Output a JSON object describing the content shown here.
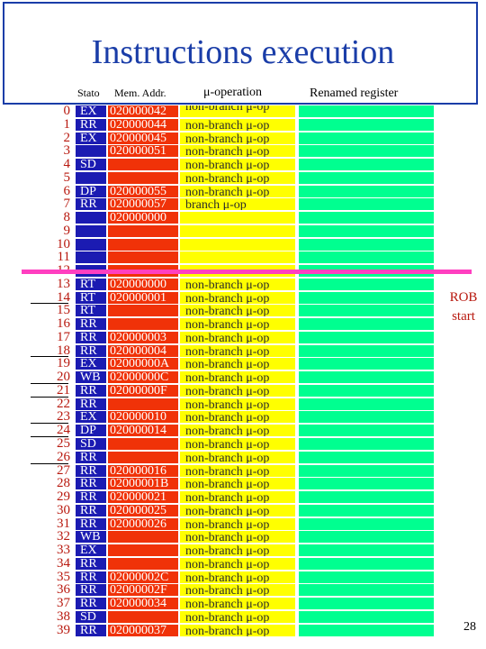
{
  "title": "Instructions execution",
  "headers": {
    "stato": "Stato",
    "mem": "Mem. Addr.",
    "op": "μ-operation",
    "reg": "Renamed register"
  },
  "rows": [
    {
      "idx": "0",
      "stato": "EX",
      "mem": "020000042",
      "op": "non-branch μ-op"
    },
    {
      "idx": "1",
      "stato": "RR",
      "mem": "020000044",
      "op": "non-branch μ-op"
    },
    {
      "idx": "2",
      "stato": "EX",
      "mem": "020000045",
      "op": "non-branch μ-op"
    },
    {
      "idx": "3",
      "stato": "",
      "mem": "020000051",
      "op": "non-branch μ-op"
    },
    {
      "idx": "4",
      "stato": "SD",
      "mem": "",
      "op": "non-branch μ-op"
    },
    {
      "idx": "5",
      "stato": "",
      "mem": "",
      "op": "non-branch μ-op"
    },
    {
      "idx": "6",
      "stato": "DP",
      "mem": "020000055",
      "op": "non-branch μ-op"
    },
    {
      "idx": "7",
      "stato": "RR",
      "mem": "020000057",
      "op": "branch μ-op"
    },
    {
      "idx": "8",
      "stato": "",
      "mem": "020000000",
      "op": ""
    },
    {
      "idx": "9",
      "stato": "",
      "mem": "",
      "op": ""
    },
    {
      "idx": "10",
      "stato": "",
      "mem": "",
      "op": ""
    },
    {
      "idx": "11",
      "stato": "",
      "mem": "",
      "op": ""
    },
    {
      "idx": "12",
      "stato": "",
      "mem": "",
      "op": ""
    },
    {
      "idx": "13",
      "stato": "RT",
      "mem": "020000000",
      "op": "non-branch μ-op"
    },
    {
      "idx": "14",
      "stato": "RT",
      "mem": "020000001",
      "op": "non-branch μ-op"
    },
    {
      "idx": "15",
      "stato": "RT",
      "mem": "",
      "op": "non-branch μ-op"
    },
    {
      "idx": "16",
      "stato": "RR",
      "mem": "",
      "op": "non-branch μ-op"
    },
    {
      "idx": "17",
      "stato": "RR",
      "mem": "020000003",
      "op": "non-branch μ-op"
    },
    {
      "idx": "18",
      "stato": "RR",
      "mem": "020000004",
      "op": "non-branch μ-op"
    },
    {
      "idx": "19",
      "stato": "EX",
      "mem": "02000000A",
      "op": "non-branch μ-op"
    },
    {
      "idx": "20",
      "stato": "WB",
      "mem": "02000000C",
      "op": "non-branch μ-op"
    },
    {
      "idx": "21",
      "stato": "RR",
      "mem": "02000000F",
      "op": "non-branch μ-op"
    },
    {
      "idx": "22",
      "stato": "RR",
      "mem": "",
      "op": "non-branch μ-op"
    },
    {
      "idx": "23",
      "stato": "EX",
      "mem": "020000010",
      "op": "non-branch μ-op"
    },
    {
      "idx": "24",
      "stato": "DP",
      "mem": "020000014",
      "op": "non-branch μ-op"
    },
    {
      "idx": "25",
      "stato": "SD",
      "mem": "",
      "op": "non-branch μ-op"
    },
    {
      "idx": "26",
      "stato": "RR",
      "mem": "",
      "op": "non-branch μ-op"
    },
    {
      "idx": "27",
      "stato": "RR",
      "mem": "020000016",
      "op": "non-branch μ-op"
    },
    {
      "idx": "28",
      "stato": "RR",
      "mem": "02000001B",
      "op": "non-branch μ-op"
    },
    {
      "idx": "29",
      "stato": "RR",
      "mem": "020000021",
      "op": "non-branch μ-op"
    },
    {
      "idx": "30",
      "stato": "RR",
      "mem": "020000025",
      "op": "non-branch μ-op"
    },
    {
      "idx": "31",
      "stato": "RR",
      "mem": "020000026",
      "op": "non-branch μ-op"
    },
    {
      "idx": "32",
      "stato": "WB",
      "mem": "",
      "op": "non-branch μ-op"
    },
    {
      "idx": "33",
      "stato": "EX",
      "mem": "",
      "op": "non-branch μ-op"
    },
    {
      "idx": "34",
      "stato": "RR",
      "mem": "",
      "op": "non-branch μ-op"
    },
    {
      "idx": "35",
      "stato": "RR",
      "mem": "02000002C",
      "op": "non-branch μ-op"
    },
    {
      "idx": "36",
      "stato": "RR",
      "mem": "02000002F",
      "op": "non-branch μ-op"
    },
    {
      "idx": "37",
      "stato": "RR",
      "mem": "020000034",
      "op": "non-branch μ-op"
    },
    {
      "idx": "38",
      "stato": "SD",
      "mem": "",
      "op": "non-branch μ-op"
    },
    {
      "idx": "39",
      "stato": "RR",
      "mem": "020000037",
      "op": "non-branch μ-op"
    }
  ],
  "rob_label": "ROB start",
  "page_number": "28",
  "colors": {
    "title": "#1a3da8",
    "stato_cell": "#1b1bb2",
    "mem_cell": "#f03208",
    "op_cell": "#ffff00",
    "reg_cell": "#00ff90",
    "index_text": "#b8180e",
    "rob_marker": "#ff3fc0"
  }
}
